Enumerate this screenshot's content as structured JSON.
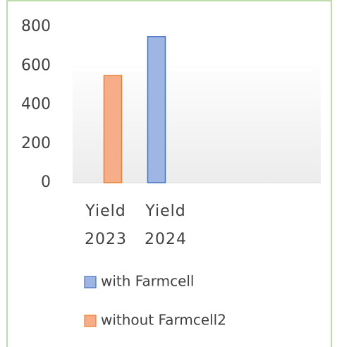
{
  "chart_data": {
    "type": "bar",
    "categories": [
      "Yield 2023",
      "Yield 2024"
    ],
    "series": [
      {
        "name": "with Farmcell",
        "color": "#4472c4",
        "values": [
          null,
          750
        ]
      },
      {
        "name": "without Farmcell2",
        "color": "#ed7d31",
        "values": [
          550,
          null
        ]
      }
    ],
    "ylim": [
      0,
      800
    ],
    "yticks": [
      0,
      200,
      400,
      600,
      800
    ],
    "grid": false,
    "legend": "bottom"
  }
}
